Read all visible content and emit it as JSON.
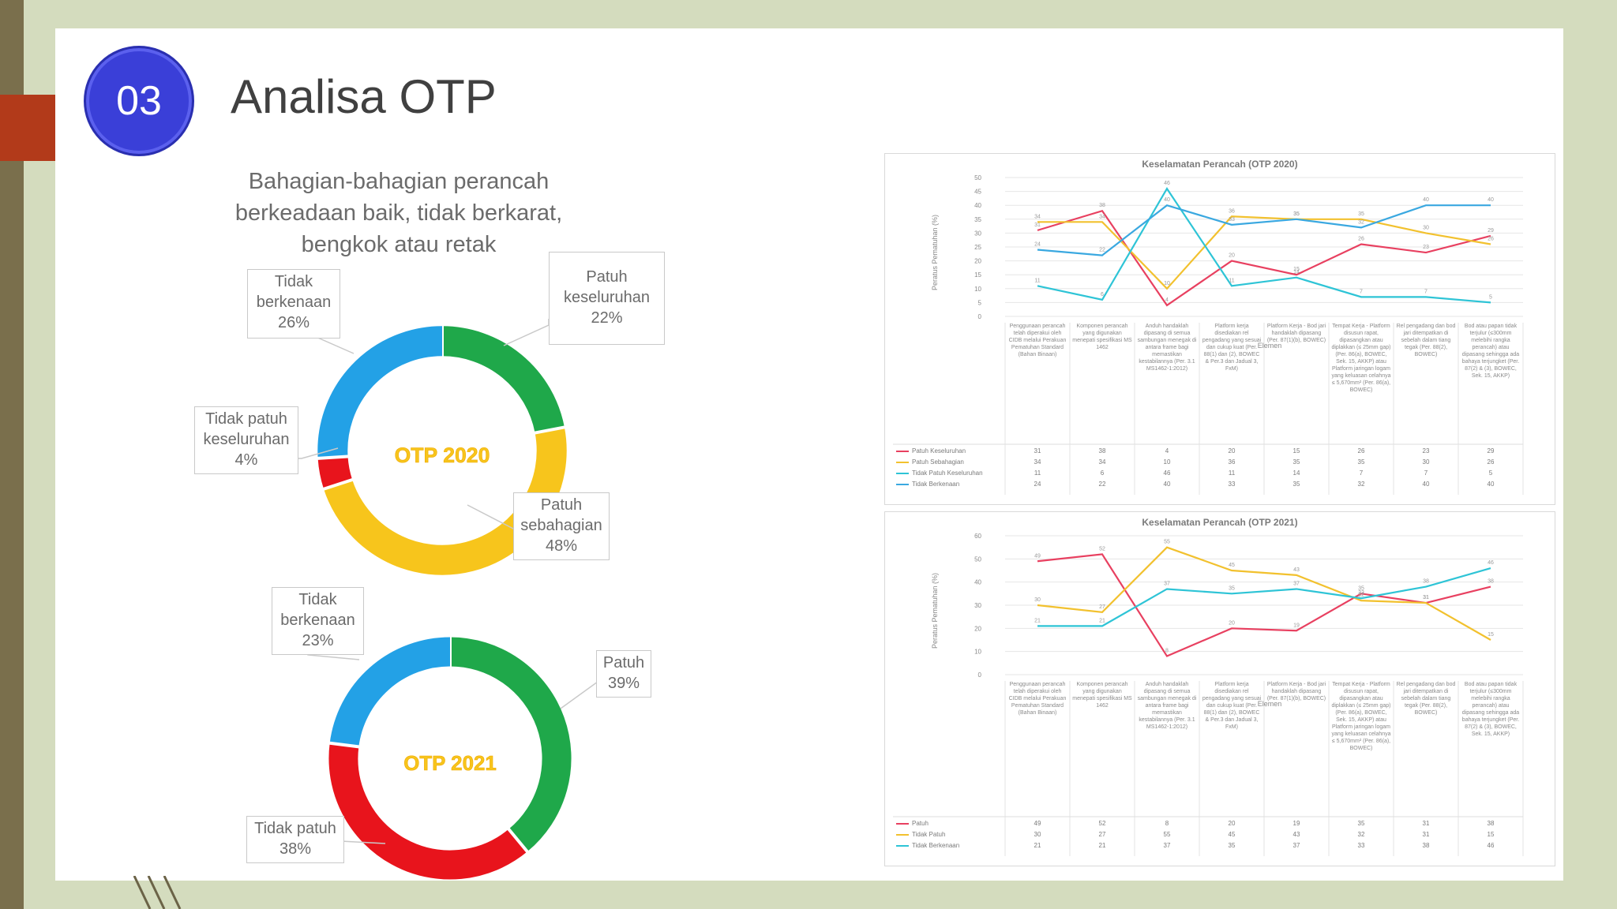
{
  "header": {
    "number": "03",
    "title": "Analisa OTP"
  },
  "subtitle": "Bahagian-bahagian perancah berkeadaan baik, tidak berkarat, bengkok atau retak",
  "donut_2020": {
    "center_label": "OTP 2020",
    "segments": [
      {
        "name": "Patuh keseluruhan",
        "pct": 22,
        "color": "#1fa84a",
        "label_lines": [
          "Patuh",
          "keseluruhan",
          "22%"
        ]
      },
      {
        "name": "Patuh sebahagian",
        "pct": 48,
        "color": "#f7c51c",
        "label_lines": [
          "Patuh",
          "sebahagian",
          "48%"
        ]
      },
      {
        "name": "Tidak patuh keseluruhan",
        "pct": 4,
        "color": "#e8141c",
        "label_lines": [
          "Tidak patuh",
          "keseluruhan",
          "4%"
        ]
      },
      {
        "name": "Tidak berkenaan",
        "pct": 26,
        "color": "#23a1e6",
        "label_lines": [
          "Tidak",
          "berkenaan",
          "26%"
        ]
      }
    ]
  },
  "donut_2021": {
    "center_label": "OTP 2021",
    "segments": [
      {
        "name": "Patuh",
        "pct": 39,
        "color": "#1fa84a",
        "label_lines": [
          "Patuh",
          "39%"
        ]
      },
      {
        "name": "Tidak patuh",
        "pct": 38,
        "color": "#e8141c",
        "label_lines": [
          "Tidak patuh",
          "38%"
        ]
      },
      {
        "name": "Tidak berkenaan",
        "pct": 23,
        "color": "#23a1e6",
        "label_lines": [
          "Tidak",
          "berkenaan",
          "23%"
        ]
      }
    ]
  },
  "chart_data": [
    {
      "type": "line",
      "title": "Keselamatan Perancah (OTP 2020)",
      "ylabel": "Peratus Pematuhan (%)",
      "xlabel": "Elemen",
      "ylim": [
        0,
        50
      ],
      "yticks": [
        0,
        5,
        10,
        15,
        20,
        25,
        30,
        35,
        40,
        45,
        50
      ],
      "categories": [
        "Penggunaan perancah telah diperakui oleh CIDB melalui Perakuan Pematuhan Standard (Bahan Binaan)",
        "Komponen perancah yang digunakan menepati spesifikasi MS 1462",
        "Anduh handaklah dipasang di semua sambungan menegak di antara frame bagi memastikan kestabilannya (Per. 3.1 MS1462-1:2012)",
        "Platform kerja disediakan rel pengadang yang sesuai dan cukup kuat (Per. 88(1) dan (2), BOWEC & Per.3 dan Jadual 3, FxM)",
        "Platform Kerja - Bod jari handaklah dipasang (Per. 87(1)(b), BOWEC)",
        "Tempat Kerja - Platform disusun rapat, dipasangkan atau diplakkan (≤ 25mm gap) (Per. 86(a), BOWEC, Sek. 15, AKKP) atau Platform jaringan logam yang keluasan celahnya ≤ 5,670mm² (Per. 86(a), BOWEC)",
        "Rel pengadang dan bod jari ditempatkan di sebelah dalam tiang tegak (Per. 88(2), BOWEC)",
        "Bod atau papan tidak terjulur (≤300mm melebihi rangka perancah) atau dipasang sehingga ada bahaya terjungket (Per. 87(2) & (3), BOWEC, Sek. 15, AKKP)"
      ],
      "series": [
        {
          "name": "Patuh Keseluruhan",
          "color": "#e84060",
          "values": [
            31,
            38,
            4,
            20,
            15,
            26,
            23,
            29
          ]
        },
        {
          "name": "Patuh Sebahagian",
          "color": "#f2c12e",
          "values": [
            34,
            34,
            10,
            36,
            35,
            35,
            30,
            26
          ]
        },
        {
          "name": "Tidak Patuh Keseluruhan",
          "color": "#2ec4d6",
          "values": [
            11,
            6,
            46,
            11,
            14,
            7,
            7,
            5
          ]
        },
        {
          "name": "Tidak Berkenaan",
          "color": "#3aa8e0",
          "values": [
            24,
            22,
            40,
            33,
            35,
            32,
            40,
            40
          ]
        }
      ]
    },
    {
      "type": "line",
      "title": "Keselamatan Perancah (OTP 2021)",
      "ylabel": "Peratus Pematuhan (%)",
      "xlabel": "Elemen",
      "ylim": [
        0,
        60
      ],
      "yticks": [
        0,
        10,
        20,
        30,
        40,
        50,
        60
      ],
      "categories": [
        "Penggunaan perancah telah diperakui oleh CIDB melalui Perakuan Pematuhan Standard (Bahan Binaan)",
        "Komponen perancah yang digunakan menepati spesifikasi MS 1462",
        "Anduh handaklah dipasang di semua sambungan menegak di antara frame bagi memastikan kestabilannya (Per. 3.1 MS1462-1:2012)",
        "Platform kerja disediakan rel pengadang yang sesuai dan cukup kuat (Per. 88(1) dan (2), BOWEC & Per.3 dan Jadual 3, FxM)",
        "Platform Kerja - Bod jari handaklah dipasang (Per. 87(1)(b), BOWEC)",
        "Tempat Kerja - Platform disusun rapat, dipasangkan atau diplakkan (≤ 25mm gap) (Per. 86(a), BOWEC, Sek. 15, AKKP) atau Platform jaringan logam yang keluasan celahnya ≤ 5,670mm² (Per. 86(a), BOWEC)",
        "Rel pengadang dan bod jari ditempatkan di sebelah dalam tiang tegak (Per. 88(2), BOWEC)",
        "Bod atau papan tidak terjulur (≤300mm melebihi rangka perancah) atau dipasang sehingga ada bahaya terjungket (Per. 87(2) & (3), BOWEC, Sek. 15, AKKP)"
      ],
      "series": [
        {
          "name": "Patuh",
          "color": "#e84060",
          "values": [
            49,
            52,
            8,
            20,
            19,
            35,
            31,
            38
          ]
        },
        {
          "name": "Tidak Patuh",
          "color": "#f2c12e",
          "values": [
            30,
            27,
            55,
            45,
            43,
            32,
            31,
            15
          ]
        },
        {
          "name": "Tidak Berkenaan",
          "color": "#2ec4d6",
          "values": [
            21,
            21,
            37,
            35,
            37,
            33,
            38,
            46
          ]
        }
      ]
    }
  ]
}
